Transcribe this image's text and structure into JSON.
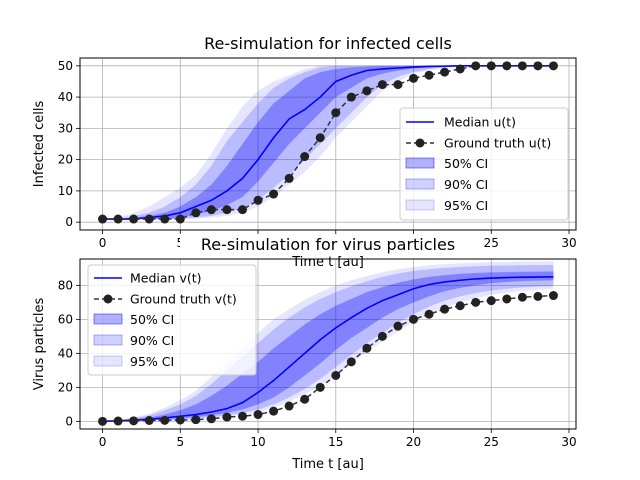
{
  "colors": {
    "median": "#0000ff",
    "truth_line": "#333333",
    "truth_marker": "#222222",
    "ci50_fill": "rgba(0,0,255,0.30)",
    "ci90_fill": "rgba(0,0,255,0.18)",
    "ci95_fill": "rgba(0,0,255,0.10)",
    "grid": "#b0b0b0"
  },
  "chart_data": [
    {
      "type": "line",
      "title": "Re-simulation for infected cells",
      "xlabel": "Time t [au]",
      "ylabel": "Infected cells",
      "xlim": [
        -1.45,
        30.45
      ],
      "ylim": [
        -2.5,
        52.5
      ],
      "xticks": [
        0,
        5,
        10,
        15,
        20,
        25,
        30
      ],
      "yticks": [
        0,
        10,
        20,
        30,
        40,
        50
      ],
      "grid": true,
      "legend_position": "center-right",
      "legend": [
        "Median u(t)",
        "Ground truth u(t)",
        "50% CI",
        "90% CI",
        "95% CI"
      ],
      "x": [
        0,
        1,
        2,
        3,
        4,
        5,
        6,
        7,
        8,
        9,
        10,
        11,
        12,
        13,
        14,
        15,
        16,
        17,
        18,
        19,
        20,
        21,
        22,
        23,
        24,
        25,
        26,
        27,
        28,
        29
      ],
      "median": [
        1,
        1,
        1,
        1.5,
        2,
        3,
        5,
        7,
        10,
        14,
        20,
        27,
        33,
        36,
        40,
        45,
        47,
        48.5,
        49,
        49.3,
        49.6,
        49.8,
        49.9,
        50,
        50,
        50,
        50,
        50,
        50,
        50
      ],
      "ground_truth": [
        1,
        1,
        1,
        1,
        1,
        1,
        3,
        4,
        4,
        4,
        7,
        9,
        14,
        21,
        27,
        35,
        40,
        42,
        44,
        44,
        46,
        47,
        48,
        49,
        50,
        50,
        50,
        50,
        50,
        50
      ],
      "ci50": {
        "lower": [
          1,
          1,
          1,
          1,
          1,
          1.5,
          2.5,
          3.5,
          5.5,
          8,
          13,
          19,
          25,
          30,
          35,
          40,
          43,
          46,
          47.5,
          48.5,
          49.2,
          49.5,
          49.7,
          49.8,
          49.9,
          50,
          50,
          50,
          50,
          50
        ],
        "upper": [
          1,
          1,
          1.5,
          2,
          3,
          5,
          8,
          12,
          18,
          25,
          32,
          38,
          42,
          46,
          48,
          49,
          49.5,
          49.8,
          50,
          50,
          50,
          50,
          50,
          50,
          50,
          50,
          50,
          50,
          50,
          50
        ]
      },
      "ci90": {
        "lower": [
          1,
          1,
          1,
          1,
          1,
          1,
          1.5,
          2,
          3,
          4.5,
          7,
          11,
          15,
          20,
          25,
          30,
          35,
          40,
          44,
          46.5,
          48,
          49,
          49.5,
          49.8,
          50,
          50,
          50,
          50,
          50,
          50
        ],
        "upper": [
          1,
          1,
          2,
          3,
          5,
          8,
          12,
          18,
          26,
          32,
          38,
          43,
          46,
          48,
          49.5,
          50,
          50,
          50,
          50,
          50,
          50,
          50,
          50,
          50,
          50,
          50,
          50,
          50,
          50,
          50
        ]
      },
      "ci95": {
        "lower": [
          1,
          1,
          1,
          1,
          1,
          1,
          1,
          1.5,
          2,
          3,
          5,
          8,
          12,
          16,
          21,
          27,
          32,
          37,
          42,
          45,
          47.5,
          48.5,
          49.3,
          49.7,
          49.9,
          50,
          50,
          50,
          50,
          50
        ],
        "upper": [
          1,
          1.5,
          3,
          5,
          8,
          11,
          15,
          22,
          30,
          37,
          42,
          45,
          47,
          49,
          50,
          50,
          50,
          50,
          50,
          50,
          50,
          50,
          50,
          50,
          50,
          50,
          50,
          50,
          50,
          50
        ]
      }
    },
    {
      "type": "line",
      "title": "Re-simulation for virus particles",
      "xlabel": "Time t [au]",
      "ylabel": "Virus particles",
      "xlim": [
        -1.45,
        30.45
      ],
      "ylim": [
        -4.5,
        95.5
      ],
      "xticks": [
        0,
        5,
        10,
        15,
        20,
        25,
        30
      ],
      "yticks": [
        0,
        20,
        40,
        60,
        80
      ],
      "grid": true,
      "legend_position": "upper-left",
      "legend": [
        "Median v(t)",
        "Ground truth v(t)",
        "50% CI",
        "90% CI",
        "95% CI"
      ],
      "x": [
        0,
        1,
        2,
        3,
        4,
        5,
        6,
        7,
        8,
        9,
        10,
        11,
        12,
        13,
        14,
        15,
        16,
        17,
        18,
        19,
        20,
        21,
        22,
        23,
        24,
        25,
        26,
        27,
        28,
        29
      ],
      "median": [
        0,
        0.3,
        0.7,
        1.2,
        2,
        3,
        4,
        5.5,
        7.5,
        11,
        17,
        24,
        32,
        40,
        48,
        55,
        61,
        66.5,
        71,
        74.5,
        78,
        80.5,
        82,
        83,
        83.8,
        84.3,
        84.6,
        84.8,
        84.9,
        85
      ],
      "ground_truth": [
        0,
        0.2,
        0.3,
        0.5,
        0.6,
        0.8,
        1,
        1.5,
        2.5,
        3,
        4,
        6,
        9,
        13,
        20,
        27,
        35,
        43,
        50,
        56,
        60,
        63,
        66,
        68,
        70,
        71,
        72,
        73,
        73.5,
        74
      ],
      "ci50": {
        "lower": [
          0,
          0.2,
          0.4,
          0.7,
          1.2,
          1.8,
          2.5,
          3.5,
          5,
          7,
          10,
          14,
          20,
          27,
          34,
          42,
          49,
          55,
          61,
          66,
          70,
          73.5,
          76.5,
          78.5,
          80,
          81.2,
          82,
          82.5,
          82.8,
          83
        ],
        "upper": [
          0,
          0.4,
          1.2,
          2.2,
          4,
          6.5,
          10,
          15,
          21,
          28,
          35,
          43,
          50,
          57,
          63,
          68,
          72,
          76,
          79,
          81.5,
          83.5,
          85,
          86,
          86.8,
          87.3,
          87.6,
          87.8,
          88,
          88.1,
          88.2
        ]
      },
      "ci90": {
        "lower": [
          0,
          0.1,
          0.3,
          0.5,
          0.8,
          1.2,
          1.8,
          2.5,
          3.5,
          5,
          7,
          10,
          14,
          19,
          25,
          32,
          39,
          46,
          52,
          58,
          63,
          67.5,
          71,
          73.5,
          75.5,
          77,
          78,
          78.8,
          79.3,
          79.6
        ],
        "upper": [
          0,
          0.6,
          1.8,
          3.5,
          6.5,
          10,
          15,
          22,
          30,
          38,
          46,
          54,
          61,
          67,
          72,
          76,
          79.5,
          82.5,
          85,
          87,
          88.5,
          89.5,
          90.3,
          90.8,
          91.2,
          91.5,
          91.7,
          91.8,
          91.9,
          92
        ]
      },
      "ci95": {
        "lower": [
          0,
          0.1,
          0.2,
          0.4,
          0.6,
          1,
          1.4,
          2,
          2.8,
          4,
          5.5,
          8,
          11.5,
          16,
          21,
          27,
          34,
          41,
          47,
          53,
          58.5,
          63,
          67,
          70,
          72.5,
          74.5,
          75.8,
          76.8,
          77.4,
          77.8
        ],
        "upper": [
          0,
          0.8,
          2.2,
          4.5,
          8,
          12.5,
          18,
          26,
          35,
          44,
          52,
          60,
          66,
          71.5,
          76,
          80,
          83,
          85.5,
          87.8,
          89.5,
          90.8,
          91.8,
          92.5,
          93,
          93.4,
          93.7,
          93.9,
          94,
          94.1,
          94.2
        ]
      }
    }
  ]
}
